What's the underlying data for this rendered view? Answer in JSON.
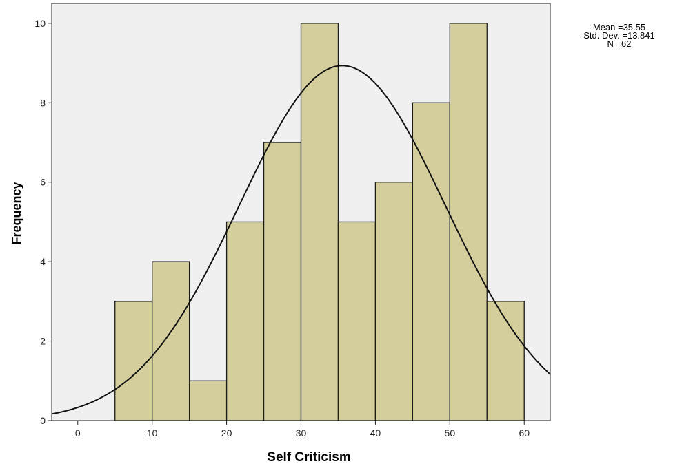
{
  "chart_data": {
    "type": "bar",
    "subtype": "histogram",
    "xlabel": "Self Criticism",
    "ylabel": "Frequency",
    "bins": [
      {
        "from": 5,
        "to": 10,
        "count": 3
      },
      {
        "from": 10,
        "to": 15,
        "count": 4
      },
      {
        "from": 15,
        "to": 20,
        "count": 1
      },
      {
        "from": 20,
        "to": 25,
        "count": 5
      },
      {
        "from": 25,
        "to": 30,
        "count": 7
      },
      {
        "from": 30,
        "to": 35,
        "count": 10
      },
      {
        "from": 35,
        "to": 40,
        "count": 5
      },
      {
        "from": 40,
        "to": 45,
        "count": 6
      },
      {
        "from": 45,
        "to": 50,
        "count": 8
      },
      {
        "from": 50,
        "to": 55,
        "count": 10
      },
      {
        "from": 55,
        "to": 60,
        "count": 3
      }
    ],
    "xlim": [
      -3.5,
      63.5
    ],
    "ylim": [
      0,
      10.5
    ],
    "xticks": [
      0,
      10,
      20,
      30,
      40,
      50,
      60
    ],
    "yticks": [
      0,
      2,
      4,
      6,
      8,
      10
    ],
    "normal_curve": {
      "mean": 35.55,
      "std": 13.841,
      "n": 62,
      "bin_width": 5
    },
    "stats_text": {
      "mean": "Mean =35.55",
      "std": "Std. Dev. =13.841",
      "n": "N =62"
    },
    "colors": {
      "plot_background": "#f0f0f0",
      "bar_fill": "#d3ce9b",
      "bar_stroke": "#1a1a1a",
      "curve": "#111111"
    },
    "grid": false
  }
}
